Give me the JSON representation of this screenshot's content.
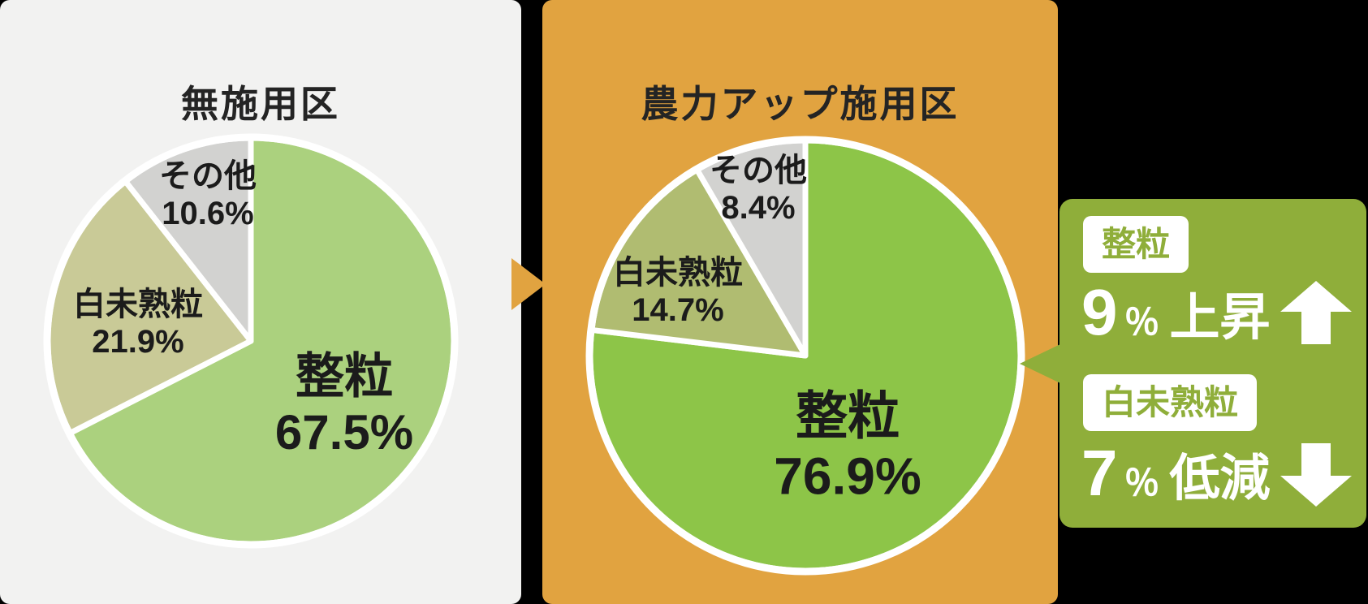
{
  "theme": {
    "background": "#000000",
    "panel_left_bg": "#f2f2f1",
    "panel_right_bg": "#e1a340",
    "callout_bg": "#8fae3a",
    "slice_border": "#ffffff",
    "title_text": "#242424",
    "label_text": "#1b1b1b"
  },
  "chart_data": [
    {
      "type": "pie",
      "title": "無施用区",
      "labels": [
        "整粒",
        "白未熟粒",
        "その他"
      ],
      "values": [
        67.5,
        21.9,
        10.6
      ],
      "value_labels": [
        "67.5%",
        "21.9%",
        "10.6%"
      ],
      "colors": [
        "#abd17e",
        "#c9ca97",
        "#d2d2d0"
      ],
      "start_angle_deg": 0,
      "direction": "clockwise",
      "slice_border": "#ffffff",
      "legend_position": "on-slice"
    },
    {
      "type": "pie",
      "title": "農力アップ施用区",
      "labels": [
        "整粒",
        "白未熟粒",
        "その他"
      ],
      "values": [
        76.9,
        14.7,
        8.4
      ],
      "value_labels": [
        "76.9%",
        "14.7%",
        "8.4%"
      ],
      "colors": [
        "#8dc548",
        "#b0bc71",
        "#d2d2d0"
      ],
      "start_angle_deg": 0,
      "direction": "clockwise",
      "slice_border": "#ffffff",
      "legend_position": "on-slice"
    }
  ],
  "connector_arrow": {
    "icon": "right-triangle-arrow",
    "color": "#e1a340"
  },
  "callout": {
    "bg": "#8fae3a",
    "pointer": "left-triangle-arrow",
    "items": [
      {
        "badge": "整粒",
        "value": "9",
        "unit": "％",
        "verb": "上昇",
        "direction": "up"
      },
      {
        "badge": "白未熟粒",
        "value": "7",
        "unit": "％",
        "verb": "低減",
        "direction": "down"
      }
    ]
  }
}
